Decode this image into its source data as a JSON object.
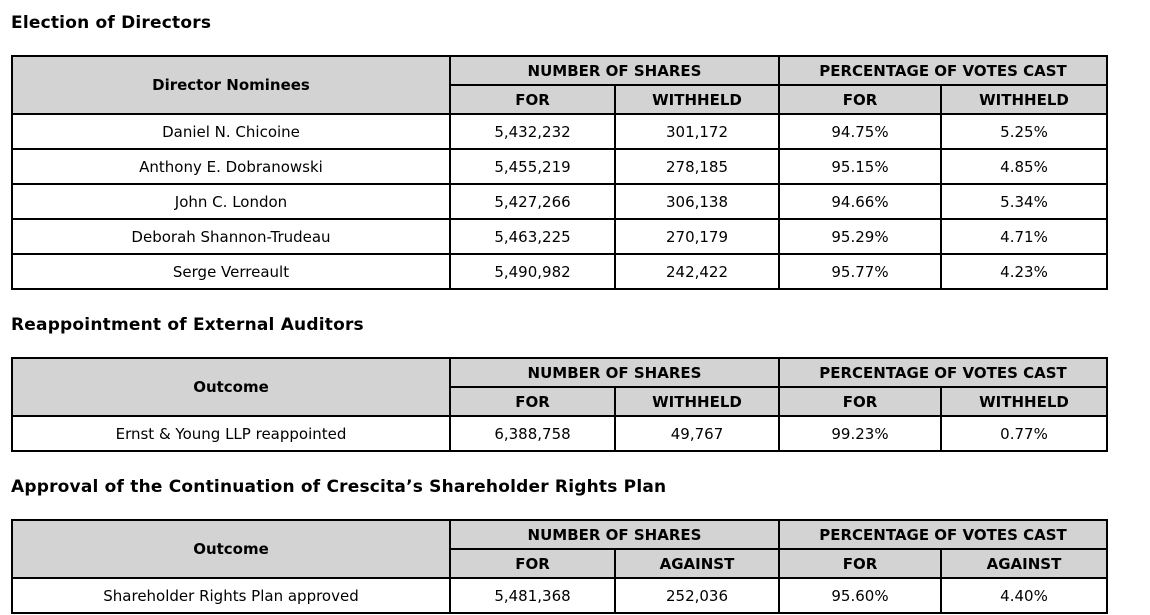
{
  "colors": {
    "header_bg": "#d3d3d3",
    "border": "#000000",
    "text": "#000000",
    "page_bg": "#ffffff"
  },
  "sections": [
    {
      "title": "Election of Directors",
      "table": {
        "row_header_label": "Director Nominees",
        "group_headers": [
          "NUMBER OF SHARES",
          "PERCENTAGE OF VOTES CAST"
        ],
        "sub_headers": [
          "FOR",
          "WITHHELD",
          "FOR",
          "WITHHELD"
        ],
        "rows": [
          {
            "label": "Daniel N. Chicoine",
            "values": [
              "5,432,232",
              "301,172",
              "94.75%",
              "5.25%"
            ]
          },
          {
            "label": "Anthony E. Dobranowski",
            "values": [
              "5,455,219",
              "278,185",
              "95.15%",
              "4.85%"
            ]
          },
          {
            "label": "John C. London",
            "values": [
              "5,427,266",
              "306,138",
              "94.66%",
              "5.34%"
            ]
          },
          {
            "label": "Deborah Shannon-Trudeau",
            "values": [
              "5,463,225",
              "270,179",
              "95.29%",
              "4.71%"
            ]
          },
          {
            "label": "Serge Verreault",
            "values": [
              "5,490,982",
              "242,422",
              "95.77%",
              "4.23%"
            ]
          }
        ]
      }
    },
    {
      "title": "Reappointment of External Auditors",
      "table": {
        "row_header_label": "Outcome",
        "group_headers": [
          "NUMBER OF SHARES",
          "PERCENTAGE OF VOTES CAST"
        ],
        "sub_headers": [
          "FOR",
          "WITHHELD",
          "FOR",
          "WITHHELD"
        ],
        "rows": [
          {
            "label": "Ernst & Young LLP reappointed",
            "values": [
              "6,388,758",
              "49,767",
              "99.23%",
              "0.77%"
            ]
          }
        ]
      }
    },
    {
      "title": "Approval of the Continuation of Crescita’s Shareholder Rights Plan",
      "table": {
        "row_header_label": "Outcome",
        "group_headers": [
          "NUMBER OF SHARES",
          "PERCENTAGE OF VOTES CAST"
        ],
        "sub_headers": [
          "FOR",
          "AGAINST",
          "FOR",
          "AGAINST"
        ],
        "rows": [
          {
            "label": "Shareholder Rights Plan approved",
            "values": [
              "5,481,368",
              "252,036",
              "95.60%",
              "4.40%"
            ]
          }
        ]
      }
    }
  ]
}
